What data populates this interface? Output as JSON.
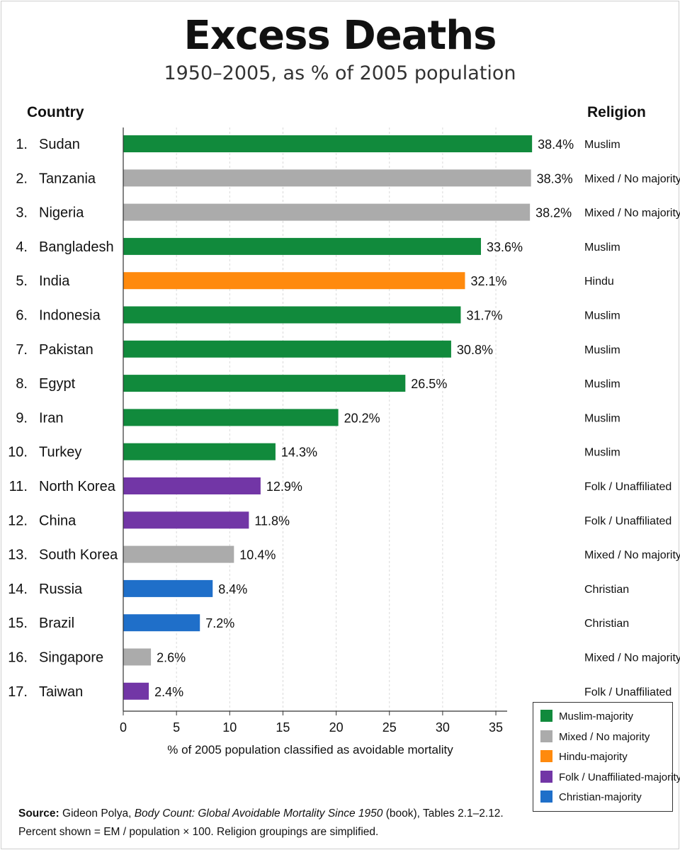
{
  "header": {
    "title": "Excess Deaths",
    "subtitle": "1950–2005, as % of 2005 population",
    "country_column": "Country",
    "religion_column": "Religion"
  },
  "colors": {
    "Muslim": "#118a3c",
    "Mixed": "#ababab",
    "Hindu": "#ff8a0d",
    "Folk": "#7236a6",
    "Christian": "#1f6fc9"
  },
  "chart_data": {
    "type": "bar",
    "orientation": "horizontal",
    "xlabel": "% of 2005 population classified as avoidable mortality",
    "xlim": [
      0,
      36
    ],
    "xticks": [
      0,
      5,
      10,
      15,
      20,
      25,
      30,
      35
    ],
    "grid": "vertical dashed",
    "legend_position": "bottom-right",
    "rows": [
      {
        "rank": "1.",
        "country": "Sudan",
        "value": 38.4,
        "label": "38.4%",
        "religion": "Muslim",
        "group": "Muslim"
      },
      {
        "rank": "2.",
        "country": "Tanzania",
        "value": 38.3,
        "label": "38.3%",
        "religion": "Mixed / No majority",
        "group": "Mixed"
      },
      {
        "rank": "3.",
        "country": "Nigeria",
        "value": 38.2,
        "label": "38.2%",
        "religion": "Mixed / No majority",
        "group": "Mixed"
      },
      {
        "rank": "4.",
        "country": "Bangladesh",
        "value": 33.6,
        "label": "33.6%",
        "religion": "Muslim",
        "group": "Muslim"
      },
      {
        "rank": "5.",
        "country": "India",
        "value": 32.1,
        "label": "32.1%",
        "religion": "Hindu",
        "group": "Hindu"
      },
      {
        "rank": "6.",
        "country": "Indonesia",
        "value": 31.7,
        "label": "31.7%",
        "religion": "Muslim",
        "group": "Muslim"
      },
      {
        "rank": "7.",
        "country": "Pakistan",
        "value": 30.8,
        "label": "30.8%",
        "religion": "Muslim",
        "group": "Muslim"
      },
      {
        "rank": "8.",
        "country": "Egypt",
        "value": 26.5,
        "label": "26.5%",
        "religion": "Muslim",
        "group": "Muslim"
      },
      {
        "rank": "9.",
        "country": "Iran",
        "value": 20.2,
        "label": "20.2%",
        "religion": "Muslim",
        "group": "Muslim"
      },
      {
        "rank": "10.",
        "country": "Turkey",
        "value": 14.3,
        "label": "14.3%",
        "religion": "Muslim",
        "group": "Muslim"
      },
      {
        "rank": "11.",
        "country": "North Korea",
        "value": 12.9,
        "label": "12.9%",
        "religion": "Folk / Unaffiliated",
        "group": "Folk"
      },
      {
        "rank": "12.",
        "country": "China",
        "value": 11.8,
        "label": "11.8%",
        "religion": "Folk / Unaffiliated",
        "group": "Folk"
      },
      {
        "rank": "13.",
        "country": "South Korea",
        "value": 10.4,
        "label": "10.4%",
        "religion": "Mixed / No majority",
        "group": "Mixed"
      },
      {
        "rank": "14.",
        "country": "Russia",
        "value": 8.4,
        "label": "8.4%",
        "religion": "Christian",
        "group": "Christian"
      },
      {
        "rank": "15.",
        "country": "Brazil",
        "value": 7.2,
        "label": "7.2%",
        "religion": "Christian",
        "group": "Christian"
      },
      {
        "rank": "16.",
        "country": "Singapore",
        "value": 2.6,
        "label": "2.6%",
        "religion": "Mixed / No majority",
        "group": "Mixed"
      },
      {
        "rank": "17.",
        "country": "Taiwan",
        "value": 2.4,
        "label": "2.4%",
        "religion": "Folk / Unaffiliated",
        "group": "Folk"
      }
    ]
  },
  "legend": [
    {
      "label": "Muslim-majority",
      "group": "Muslim"
    },
    {
      "label": "Mixed / No majority",
      "group": "Mixed"
    },
    {
      "label": "Hindu-majority",
      "group": "Hindu"
    },
    {
      "label": "Folk / Unaffiliated-majority",
      "group": "Folk"
    },
    {
      "label": "Christian-majority",
      "group": "Christian"
    }
  ],
  "source": {
    "label": "Source:",
    "author": "Gideon Polya,",
    "book": "Body Count: Global Avoidable Mortality Since 1950",
    "rest": "(book), Tables 2.1–2.12.",
    "note": "Percent shown = EM / population  ×  100. Religion groupings are simplified."
  }
}
